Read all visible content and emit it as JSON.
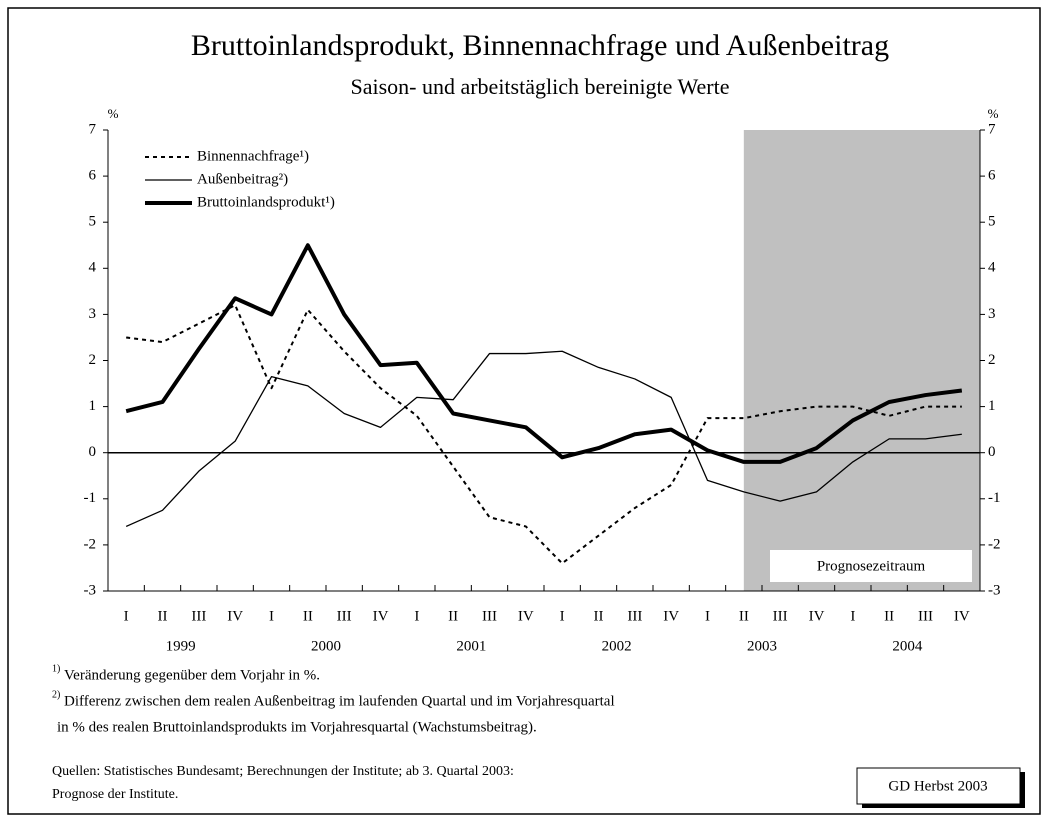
{
  "chart_data": {
    "type": "line",
    "title": "Bruttoinlandsprodukt, Binnennachfrage und Außenbeitrag",
    "subtitle": "Saison- und arbeitstäglich bereinigte Werte",
    "y_unit": "%",
    "categories": [
      "I",
      "II",
      "III",
      "IV",
      "I",
      "II",
      "III",
      "IV",
      "I",
      "II",
      "III",
      "IV",
      "I",
      "II",
      "III",
      "IV",
      "I",
      "II",
      "III",
      "IV",
      "I",
      "II",
      "III",
      "IV"
    ],
    "years": [
      "1999",
      "2000",
      "2001",
      "2002",
      "2003",
      "2004"
    ],
    "series": [
      {
        "name": "Binnennachfrage¹)",
        "color": "#000000",
        "style": "dotted",
        "values": [
          2.5,
          2.4,
          2.8,
          3.2,
          1.4,
          3.1,
          2.2,
          1.4,
          0.8,
          -0.3,
          -1.4,
          -1.6,
          -2.4,
          -1.8,
          -1.2,
          -0.7,
          0.75,
          0.75,
          0.9,
          1.0,
          1.0,
          0.8,
          1.0,
          1.0
        ]
      },
      {
        "name": "Außenbeitrag²)",
        "color": "#000000",
        "style": "thin",
        "values": [
          -1.6,
          -1.25,
          -0.4,
          0.25,
          1.65,
          1.45,
          0.85,
          0.55,
          1.2,
          1.15,
          2.15,
          2.15,
          2.2,
          1.85,
          1.6,
          1.2,
          -0.6,
          -0.85,
          -1.05,
          -0.85,
          -0.2,
          0.3,
          0.3,
          0.4
        ]
      },
      {
        "name": "Bruttoinlandsprodukt¹)",
        "color": "#000000",
        "style": "thick",
        "values": [
          0.9,
          1.1,
          2.25,
          3.35,
          3.0,
          4.5,
          3.0,
          1.9,
          1.95,
          0.85,
          0.7,
          0.55,
          -0.1,
          0.1,
          0.4,
          0.5,
          0.05,
          -0.2,
          -0.2,
          0.1,
          0.7,
          1.1,
          1.25,
          1.35
        ]
      }
    ],
    "ylim": [
      -3,
      7
    ],
    "yticks": [
      -3,
      -2,
      -1,
      0,
      1,
      2,
      3,
      4,
      5,
      6,
      7
    ],
    "y2lim": [
      -3,
      7
    ],
    "y2ticks": [
      -3,
      -2,
      -1,
      0,
      1,
      2,
      3,
      4,
      5,
      6,
      7
    ],
    "forecast_from_index": 18,
    "forecast_color": "#c0c0c0",
    "forecast_label": "Prognosezeitraum",
    "notes": [
      {
        "marker": "1)",
        "lines": [
          "Veränderung gegenüber dem Vorjahr in %."
        ]
      },
      {
        "marker": "2)",
        "lines": [
          "Differenz zwischen dem realen Außenbeitrag im laufenden Quartal und im Vorjahresquartal",
          "in % des realen Bruttoinlandsprodukts im Vorjahresquartal (Wachstumsbeitrag)."
        ]
      }
    ],
    "source": [
      "Quellen: Statistisches Bundesamt; Berechnungen der Institute; ab 3. Quartal 2003:",
      "Prognose der Institute."
    ],
    "badge": "GD Herbst 2003"
  }
}
